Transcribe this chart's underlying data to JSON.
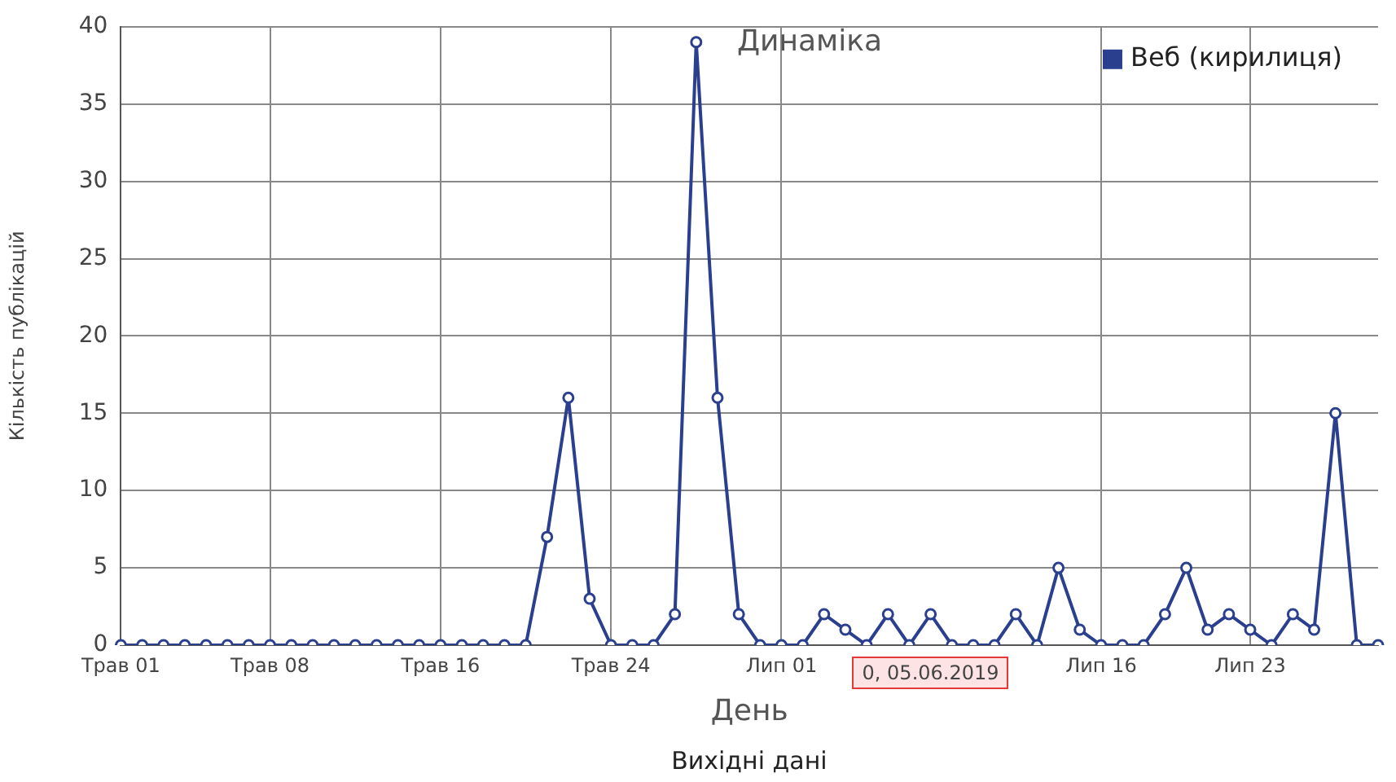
{
  "chart_data": {
    "type": "line",
    "title": "Динаміка",
    "xlabel": "День",
    "ylabel": "Кількість публікацій",
    "categories": [
      "Трав 01",
      null,
      null,
      null,
      null,
      null,
      null,
      "Трав 08",
      null,
      null,
      null,
      null,
      null,
      null,
      null,
      "Трав 16",
      null,
      null,
      null,
      null,
      null,
      null,
      null,
      "Трав 24",
      null,
      null,
      null,
      null,
      null,
      null,
      null,
      "Лип 01",
      null,
      null,
      null,
      null,
      null,
      null,
      null,
      null,
      null,
      null,
      null,
      null,
      null,
      null,
      "Лип 16",
      null,
      null,
      null,
      null,
      null,
      null,
      "Лип 23",
      null,
      null,
      null,
      null,
      null,
      null
    ],
    "series": [
      {
        "name": "Веб (кирилиця)",
        "color": "#2b3f8f",
        "values": [
          0,
          0,
          0,
          0,
          0,
          0,
          0,
          0,
          0,
          0,
          0,
          0,
          0,
          0,
          0,
          0,
          0,
          0,
          0,
          0,
          7,
          16,
          3,
          0,
          0,
          0,
          2,
          39,
          16,
          2,
          0,
          0,
          0,
          2,
          1,
          0,
          2,
          0,
          2,
          0,
          0,
          0,
          2,
          0,
          5,
          1,
          0,
          0,
          0,
          2,
          5,
          1,
          2,
          1,
          0,
          2,
          1,
          15,
          0,
          0
        ]
      }
    ],
    "ylim": [
      0,
      40
    ],
    "yticks": [
      0,
      5,
      10,
      15,
      20,
      25,
      30,
      35,
      40
    ],
    "grid": true,
    "legend": "top right",
    "marker": "circle",
    "line_style": "solid",
    "annotations": [
      "0, 05.06.2019",
      "Вихідні дані"
    ]
  }
}
